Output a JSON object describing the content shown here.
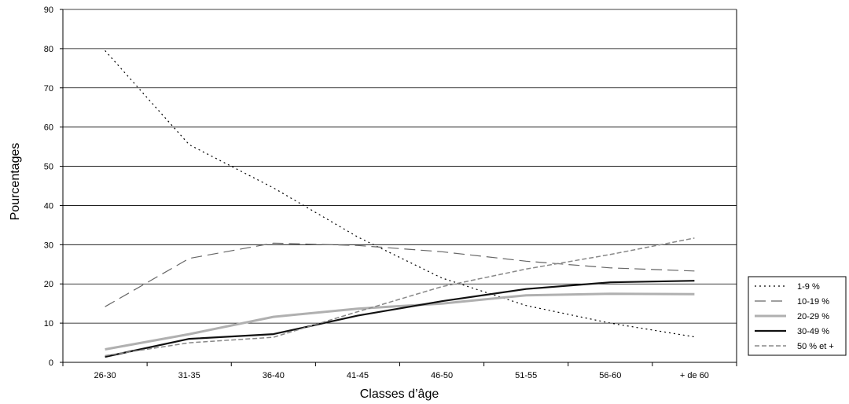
{
  "chart_data": {
    "type": "line",
    "xlabel": "Classes d’âge",
    "ylabel": "Pourcentages",
    "categories": [
      "26-30",
      "31-35",
      "36-40",
      "41-45",
      "46-50",
      "51-55",
      "56-60",
      "+ de 60"
    ],
    "ylim": [
      0,
      90
    ],
    "yticks": [
      0,
      10,
      20,
      30,
      40,
      50,
      60,
      70,
      80,
      90
    ],
    "grid": "horizontal",
    "legend_position": "right",
    "series": [
      {
        "name": "1-9 %",
        "values": [
          79.5,
          55.5,
          44.5,
          32.0,
          21.5,
          14.5,
          10.0,
          6.5
        ],
        "color": "#000000",
        "dash": "2,4",
        "width": 1.2
      },
      {
        "name": "10-19 %",
        "values": [
          14.2,
          26.5,
          30.4,
          29.8,
          28.2,
          25.8,
          24.1,
          23.3
        ],
        "color": "#666666",
        "dash": "14,7",
        "width": 1.2
      },
      {
        "name": "20-29 %",
        "values": [
          3.3,
          7.2,
          11.6,
          13.7,
          15.0,
          17.1,
          17.5,
          17.4
        ],
        "color": "#b0b0b0",
        "dash": "",
        "width": 3
      },
      {
        "name": "30-49 %",
        "values": [
          1.4,
          6.0,
          7.2,
          11.9,
          15.6,
          18.7,
          20.4,
          20.8
        ],
        "color": "#111111",
        "dash": "",
        "width": 2.2
      },
      {
        "name": "50 % et +",
        "values": [
          1.7,
          5.0,
          6.4,
          12.9,
          19.3,
          23.8,
          27.5,
          31.7
        ],
        "color": "#888888",
        "dash": "6,3",
        "width": 1.5
      }
    ]
  }
}
